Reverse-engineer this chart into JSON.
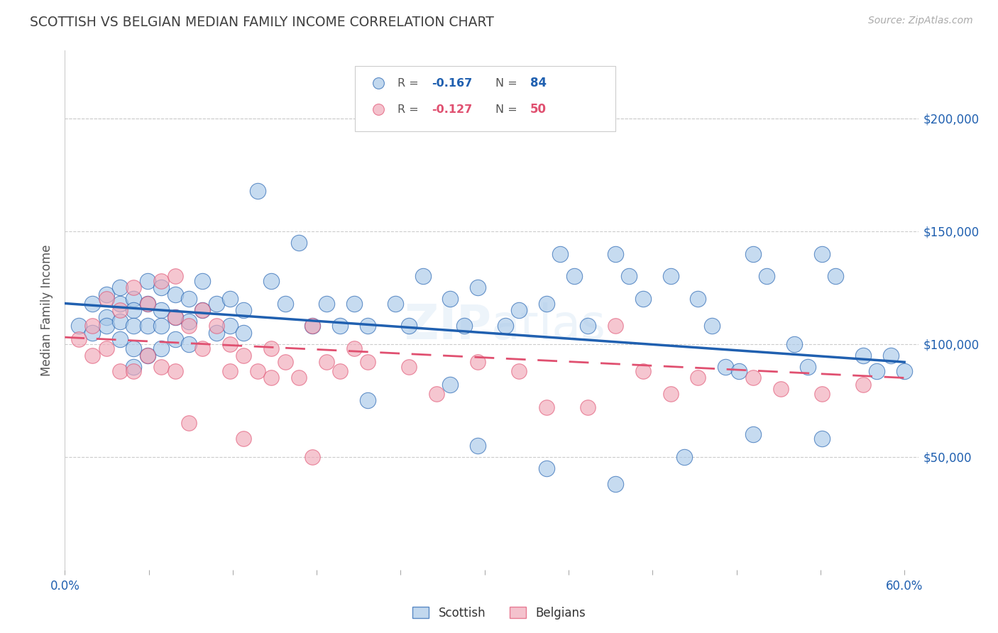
{
  "title": "SCOTTISH VS BELGIAN MEDIAN FAMILY INCOME CORRELATION CHART",
  "source": "Source: ZipAtlas.com",
  "ylabel": "Median Family Income",
  "ytick_values": [
    50000,
    100000,
    150000,
    200000
  ],
  "ylim": [
    0,
    230000
  ],
  "xlim": [
    0.0,
    0.62
  ],
  "watermark": "ZIPAtlas",
  "blue_color": "#a8c8e8",
  "pink_color": "#f0a8b8",
  "blue_line_color": "#2060b0",
  "pink_line_color": "#e05070",
  "title_color": "#404040",
  "blue_scatter_x": [
    0.01,
    0.02,
    0.02,
    0.03,
    0.03,
    0.03,
    0.04,
    0.04,
    0.04,
    0.04,
    0.05,
    0.05,
    0.05,
    0.05,
    0.05,
    0.06,
    0.06,
    0.06,
    0.06,
    0.07,
    0.07,
    0.07,
    0.07,
    0.08,
    0.08,
    0.08,
    0.09,
    0.09,
    0.09,
    0.1,
    0.1,
    0.11,
    0.11,
    0.12,
    0.12,
    0.13,
    0.13,
    0.14,
    0.15,
    0.16,
    0.17,
    0.18,
    0.19,
    0.2,
    0.21,
    0.22,
    0.24,
    0.25,
    0.26,
    0.28,
    0.29,
    0.3,
    0.32,
    0.33,
    0.35,
    0.36,
    0.37,
    0.38,
    0.4,
    0.41,
    0.42,
    0.44,
    0.46,
    0.47,
    0.48,
    0.49,
    0.5,
    0.51,
    0.53,
    0.54,
    0.55,
    0.56,
    0.58,
    0.59,
    0.6,
    0.61,
    0.3,
    0.35,
    0.4,
    0.45,
    0.5,
    0.55,
    0.22,
    0.28
  ],
  "blue_scatter_y": [
    108000,
    118000,
    105000,
    112000,
    122000,
    108000,
    118000,
    110000,
    125000,
    102000,
    120000,
    115000,
    108000,
    98000,
    90000,
    128000,
    118000,
    108000,
    95000,
    125000,
    115000,
    108000,
    98000,
    122000,
    112000,
    102000,
    120000,
    110000,
    100000,
    128000,
    115000,
    118000,
    105000,
    120000,
    108000,
    115000,
    105000,
    168000,
    128000,
    118000,
    145000,
    108000,
    118000,
    108000,
    118000,
    108000,
    118000,
    108000,
    130000,
    120000,
    108000,
    125000,
    108000,
    115000,
    118000,
    140000,
    130000,
    108000,
    140000,
    130000,
    120000,
    130000,
    120000,
    108000,
    90000,
    88000,
    140000,
    130000,
    100000,
    90000,
    140000,
    130000,
    95000,
    88000,
    95000,
    88000,
    55000,
    45000,
    38000,
    50000,
    60000,
    58000,
    75000,
    82000
  ],
  "pink_scatter_x": [
    0.01,
    0.02,
    0.02,
    0.03,
    0.03,
    0.04,
    0.04,
    0.05,
    0.05,
    0.06,
    0.06,
    0.07,
    0.07,
    0.08,
    0.08,
    0.08,
    0.09,
    0.1,
    0.1,
    0.11,
    0.12,
    0.12,
    0.13,
    0.14,
    0.15,
    0.15,
    0.16,
    0.17,
    0.18,
    0.19,
    0.2,
    0.21,
    0.22,
    0.25,
    0.27,
    0.3,
    0.33,
    0.35,
    0.38,
    0.4,
    0.42,
    0.44,
    0.46,
    0.5,
    0.52,
    0.55,
    0.58,
    0.09,
    0.13,
    0.18
  ],
  "pink_scatter_y": [
    102000,
    108000,
    95000,
    120000,
    98000,
    115000,
    88000,
    125000,
    88000,
    118000,
    95000,
    128000,
    90000,
    130000,
    112000,
    88000,
    108000,
    115000,
    98000,
    108000,
    100000,
    88000,
    95000,
    88000,
    98000,
    85000,
    92000,
    85000,
    108000,
    92000,
    88000,
    98000,
    92000,
    90000,
    78000,
    92000,
    88000,
    72000,
    72000,
    108000,
    88000,
    78000,
    85000,
    85000,
    80000,
    78000,
    82000,
    65000,
    58000,
    50000
  ],
  "blue_trend_x": [
    0.0,
    0.61
  ],
  "blue_trend_y": [
    118000,
    92000
  ],
  "pink_trend_x": [
    0.0,
    0.61
  ],
  "pink_trend_y": [
    103000,
    85000
  ],
  "xtick_positions": [
    0.0,
    0.061,
    0.122,
    0.183,
    0.244,
    0.305,
    0.366,
    0.427,
    0.488,
    0.549,
    0.61
  ],
  "xtick_labels_show": {
    "0": "0.0%",
    "10": "60.0%"
  }
}
